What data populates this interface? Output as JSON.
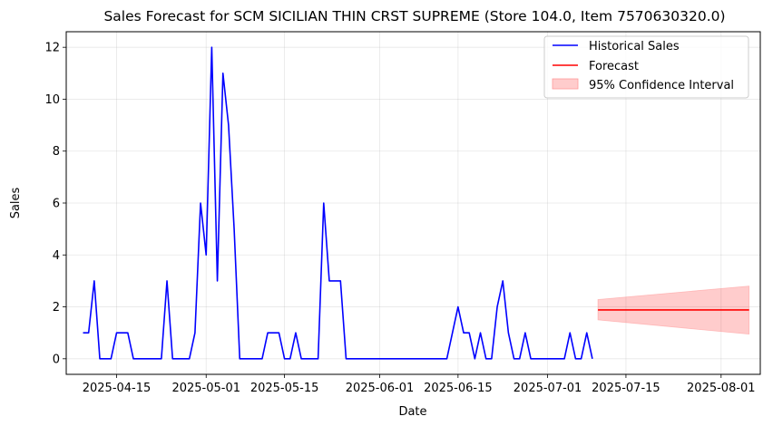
{
  "chart_data": {
    "type": "line",
    "title": "Sales Forecast for SCM SICILIAN THIN CRST SUPREME (Store 104.0, Item 7570630320.0)",
    "xlabel": "Date",
    "ylabel": "Sales",
    "x_ticks": [
      "2025-04-15",
      "2025-05-01",
      "2025-05-15",
      "2025-06-01",
      "2025-06-15",
      "2025-07-01",
      "2025-07-15",
      "2025-08-01"
    ],
    "y_ticks": [
      0,
      2,
      4,
      6,
      8,
      10,
      12
    ],
    "ylim": [
      -0.6,
      12.6
    ],
    "xlim": [
      "2025-04-06",
      "2025-08-08"
    ],
    "grid": true,
    "legend_position": "top-right",
    "series": [
      {
        "name": "Historical Sales",
        "color": "#0000ff",
        "x": [
          "2025-04-09",
          "2025-04-10",
          "2025-04-11",
          "2025-04-12",
          "2025-04-13",
          "2025-04-14",
          "2025-04-15",
          "2025-04-16",
          "2025-04-17",
          "2025-04-18",
          "2025-04-19",
          "2025-04-20",
          "2025-04-21",
          "2025-04-22",
          "2025-04-23",
          "2025-04-24",
          "2025-04-25",
          "2025-04-26",
          "2025-04-27",
          "2025-04-28",
          "2025-04-29",
          "2025-04-30",
          "2025-05-01",
          "2025-05-02",
          "2025-05-03",
          "2025-05-04",
          "2025-05-05",
          "2025-05-06",
          "2025-05-07",
          "2025-05-08",
          "2025-05-09",
          "2025-05-10",
          "2025-05-11",
          "2025-05-12",
          "2025-05-13",
          "2025-05-14",
          "2025-05-15",
          "2025-05-16",
          "2025-05-17",
          "2025-05-18",
          "2025-05-19",
          "2025-05-20",
          "2025-05-21",
          "2025-05-22",
          "2025-05-23",
          "2025-05-24",
          "2025-05-25",
          "2025-05-26",
          "2025-05-27",
          "2025-05-28",
          "2025-05-29",
          "2025-05-30",
          "2025-05-31",
          "2025-06-01",
          "2025-06-02",
          "2025-06-03",
          "2025-06-04",
          "2025-06-05",
          "2025-06-06",
          "2025-06-07",
          "2025-06-08",
          "2025-06-09",
          "2025-06-10",
          "2025-06-11",
          "2025-06-12",
          "2025-06-13",
          "2025-06-14",
          "2025-06-15",
          "2025-06-16",
          "2025-06-17",
          "2025-06-18",
          "2025-06-19",
          "2025-06-20",
          "2025-06-21",
          "2025-06-22",
          "2025-06-23",
          "2025-06-24",
          "2025-06-25",
          "2025-06-26",
          "2025-06-27",
          "2025-06-28",
          "2025-06-29",
          "2025-06-30",
          "2025-07-01",
          "2025-07-02",
          "2025-07-03",
          "2025-07-04",
          "2025-07-05",
          "2025-07-06",
          "2025-07-07",
          "2025-07-08",
          "2025-07-09"
        ],
        "y": [
          1,
          1,
          3,
          0,
          0,
          0,
          1,
          1,
          1,
          0,
          0,
          0,
          0,
          0,
          0,
          3,
          0,
          0,
          0,
          0,
          1,
          6,
          4,
          12,
          3,
          11,
          9,
          5,
          0,
          0,
          0,
          0,
          0,
          1,
          1,
          1,
          0,
          0,
          1,
          0,
          0,
          0,
          0,
          6,
          3,
          3,
          3,
          0,
          0,
          0,
          0,
          0,
          0,
          0,
          0,
          0,
          0,
          0,
          0,
          0,
          0,
          0,
          0,
          0,
          0,
          0,
          1,
          2,
          1,
          1,
          0,
          1,
          0,
          0,
          2,
          3,
          1,
          0,
          0,
          1,
          0,
          0,
          0,
          0,
          0,
          0,
          0,
          1,
          0,
          0,
          1,
          0
        ]
      },
      {
        "name": "Forecast",
        "color": "#ff0000",
        "x": [
          "2025-07-10",
          "2025-08-06"
        ],
        "y": [
          1.88,
          1.88
        ]
      }
    ],
    "confidence_interval": {
      "name": "95% Confidence Interval",
      "color": "#ff9999",
      "x": [
        "2025-07-10",
        "2025-08-06"
      ],
      "lower": [
        1.5,
        0.95
      ],
      "upper": [
        2.28,
        2.8
      ]
    }
  }
}
